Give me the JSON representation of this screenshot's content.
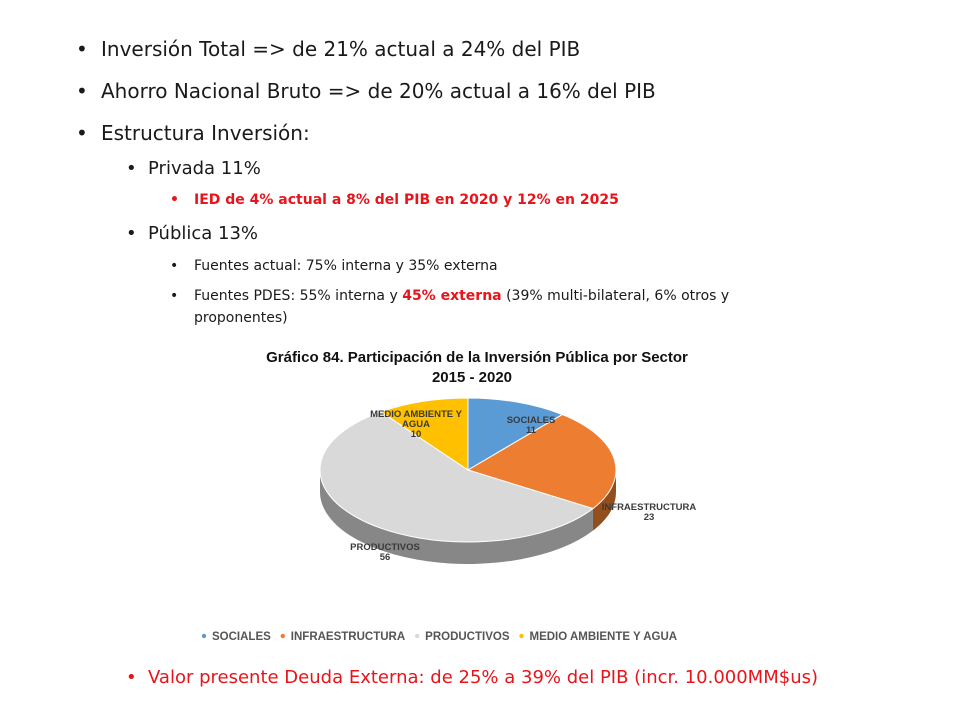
{
  "bullets": {
    "b1": "Inversión Total => de 21% actual a 24% del PIB",
    "b2": "Ahorro Nacional Bruto => de 20% actual a 16% del PIB",
    "b3": "Estructura Inversión:",
    "privada": "Privada 11%",
    "ied": "IED de 4% actual a 8% del PIB en 2020 y 12% en 2025",
    "publica": "Pública 13%",
    "fuentes_actual": "Fuentes actual: 75% interna y 35% externa",
    "fuentes_pdes_a": "Fuentes PDES: 55% interna y ",
    "fuentes_pdes_red": "45% externa",
    "fuentes_pdes_b": " (39% multi-bilateral, 6% otros y",
    "fuentes_pdes_c": "proponentes)",
    "deuda": "Valor presente Deuda Externa: de 25% a 39% del PIB (incr. 10.000MM$us)"
  },
  "chart_data": {
    "type": "pie",
    "title": "Gráfico 84. Participación de la Inversión Pública por Sector",
    "subtitle": "2015 - 2020",
    "slices": [
      {
        "name": "SOCIALES",
        "value": 11,
        "color": "#5b9bd5"
      },
      {
        "name": "INFRAESTRUCTURA",
        "value": 23,
        "color": "#ed7d31"
      },
      {
        "name": "PRODUCTIVOS",
        "value": 56,
        "color": "#d9d9d9"
      },
      {
        "name": "MEDIO AMBIENTE Y AGUA",
        "value": 10,
        "color": "#ffc000"
      }
    ],
    "label_lines": {
      "SOCIALES": [
        "SOCIALES"
      ],
      "INFRAESTRUCTURA": [
        "INFRAESTRUCTURA"
      ],
      "PRODUCTIVOS": [
        "PRODUCTIVOS"
      ],
      "MEDIO AMBIENTE Y AGUA": [
        "MEDIO AMBIENTE Y",
        "AGUA"
      ]
    },
    "legend_position": "bottom",
    "three_d": true
  }
}
